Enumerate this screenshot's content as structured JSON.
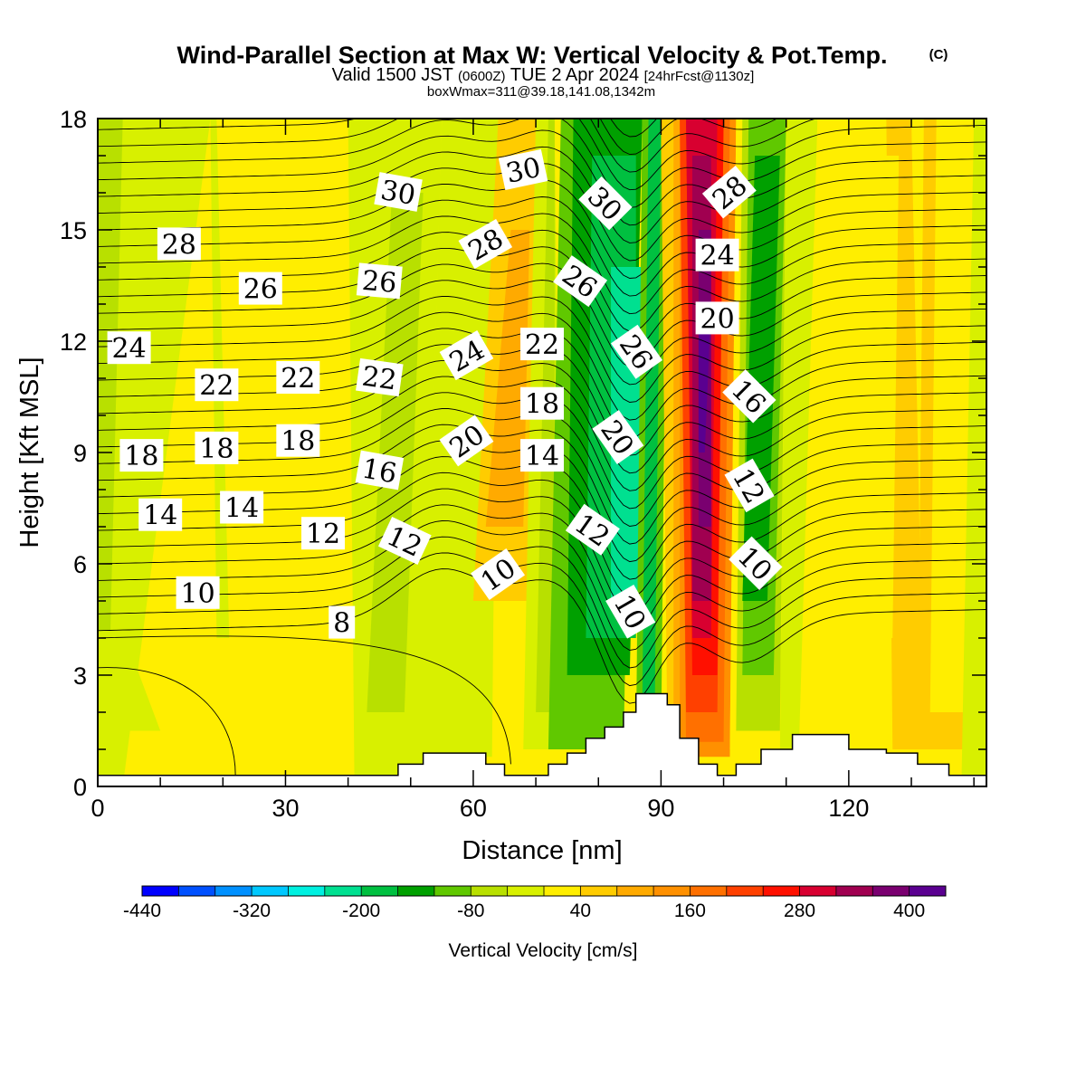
{
  "title": {
    "main": "Wind-Parallel Section at Max W: Vertical Velocity & Pot.Temp.",
    "copyright": "(C)",
    "valid_a": "Valid 1500 JST",
    "valid_utc": "(0600Z)",
    "valid_b": "TUE 2 Apr 2024",
    "valid_fcst": "[24hrFcst@1130z]",
    "box": "boxWmax=311@39.18,141.08,1342m"
  },
  "chart_data": {
    "type": "heatmap",
    "xlabel": "Distance [nm]",
    "ylabel": "Height [Kft MSL]",
    "xlim": [
      0,
      142
    ],
    "ylim": [
      0,
      18
    ],
    "xticks": [
      "0",
      "30",
      "60",
      "90",
      "120"
    ],
    "yticks": [
      "0",
      "3",
      "6",
      "9",
      "12",
      "15",
      "18"
    ],
    "colorbar": {
      "label": "Vertical Velocity [cm/s]",
      "tick_labels": [
        "-440",
        "-320",
        "-200",
        "-80",
        "40",
        "160",
        "280",
        "400"
      ],
      "tick_values": [
        -440,
        -320,
        -200,
        -80,
        40,
        160,
        280,
        400
      ],
      "min": -440,
      "max": 440,
      "colors": [
        "#0000ff",
        "#0050ff",
        "#0090ff",
        "#00c8ff",
        "#00f0e0",
        "#00e090",
        "#00c040",
        "#00a000",
        "#60c800",
        "#b8e000",
        "#d8f000",
        "#ffee00",
        "#ffcc00",
        "#ffaa00",
        "#ff9000",
        "#ff7000",
        "#ff4000",
        "#ff1000",
        "#d80030",
        "#a00050",
        "#7a0070",
        "#5a0090"
      ]
    },
    "terrain_kft": [
      [
        0,
        0.3
      ],
      [
        44,
        0.3
      ],
      [
        48,
        0.6
      ],
      [
        52,
        0.9
      ],
      [
        58,
        0.9
      ],
      [
        62,
        0.6
      ],
      [
        65,
        0.3
      ],
      [
        68,
        0.3
      ],
      [
        72,
        0.6
      ],
      [
        75,
        0.9
      ],
      [
        78,
        1.3
      ],
      [
        81,
        1.6
      ],
      [
        84,
        2
      ],
      [
        86,
        2.5
      ],
      [
        88,
        2.5
      ],
      [
        91,
        2.2
      ],
      [
        93,
        1.3
      ],
      [
        96,
        0.6
      ],
      [
        99,
        0.3
      ],
      [
        102,
        0.6
      ],
      [
        106,
        1
      ],
      [
        111,
        1.4
      ],
      [
        117,
        1.4
      ],
      [
        120,
        1.0
      ],
      [
        126,
        0.9
      ],
      [
        131,
        0.6
      ],
      [
        136,
        0.3
      ],
      [
        142,
        0.3
      ]
    ],
    "theta_labels": [
      {
        "text": "30",
        "x": 48,
        "y": 16.0,
        "rot": 10
      },
      {
        "text": "30",
        "x": 68,
        "y": 16.6,
        "rot": -12
      },
      {
        "text": "30",
        "x": 81,
        "y": 15.7,
        "rot": 45
      },
      {
        "text": "28",
        "x": 101,
        "y": 16.0,
        "rot": -40
      },
      {
        "text": "28",
        "x": 13,
        "y": 14.6,
        "rot": 0
      },
      {
        "text": "28",
        "x": 62,
        "y": 14.6,
        "rot": -30
      },
      {
        "text": "26",
        "x": 26,
        "y": 13.4,
        "rot": 0
      },
      {
        "text": "26",
        "x": 45,
        "y": 13.6,
        "rot": 5
      },
      {
        "text": "26",
        "x": 77,
        "y": 13.6,
        "rot": 35
      },
      {
        "text": "24",
        "x": 99,
        "y": 14.3,
        "rot": 0
      },
      {
        "text": "24",
        "x": 5,
        "y": 11.8,
        "rot": 0
      },
      {
        "text": "24",
        "x": 59,
        "y": 11.6,
        "rot": -30
      },
      {
        "text": "22",
        "x": 19,
        "y": 10.8,
        "rot": 0
      },
      {
        "text": "22",
        "x": 32,
        "y": 11.0,
        "rot": 0
      },
      {
        "text": "22",
        "x": 45,
        "y": 11.0,
        "rot": 8
      },
      {
        "text": "22",
        "x": 71,
        "y": 11.9,
        "rot": 0
      },
      {
        "text": "20",
        "x": 99,
        "y": 12.6,
        "rot": 0
      },
      {
        "text": "26",
        "x": 86,
        "y": 11.7,
        "rot": 55
      },
      {
        "text": "16",
        "x": 104,
        "y": 10.5,
        "rot": 45
      },
      {
        "text": "18",
        "x": 71,
        "y": 10.3,
        "rot": 0
      },
      {
        "text": "18",
        "x": 7,
        "y": 8.9,
        "rot": 0
      },
      {
        "text": "18",
        "x": 19,
        "y": 9.1,
        "rot": 0
      },
      {
        "text": "18",
        "x": 32,
        "y": 9.3,
        "rot": 0
      },
      {
        "text": "20",
        "x": 59,
        "y": 9.3,
        "rot": -35
      },
      {
        "text": "20",
        "x": 83,
        "y": 9.4,
        "rot": 55
      },
      {
        "text": "14",
        "x": 71,
        "y": 8.9,
        "rot": 0
      },
      {
        "text": "16",
        "x": 45,
        "y": 8.5,
        "rot": 10
      },
      {
        "text": "12",
        "x": 104,
        "y": 8.1,
        "rot": 60
      },
      {
        "text": "14",
        "x": 10,
        "y": 7.3,
        "rot": 0
      },
      {
        "text": "14",
        "x": 23,
        "y": 7.5,
        "rot": 0
      },
      {
        "text": "12",
        "x": 36,
        "y": 6.8,
        "rot": 0
      },
      {
        "text": "12",
        "x": 49,
        "y": 6.6,
        "rot": 25
      },
      {
        "text": "12",
        "x": 79,
        "y": 6.9,
        "rot": 35
      },
      {
        "text": "10",
        "x": 105,
        "y": 6.0,
        "rot": 45
      },
      {
        "text": "10",
        "x": 64,
        "y": 5.7,
        "rot": -35
      },
      {
        "text": "10",
        "x": 16,
        "y": 5.2,
        "rot": 0
      },
      {
        "text": "10",
        "x": 85,
        "y": 4.7,
        "rot": 60
      },
      {
        "text": "8",
        "x": 39,
        "y": 4.4,
        "rot": 0
      }
    ]
  }
}
